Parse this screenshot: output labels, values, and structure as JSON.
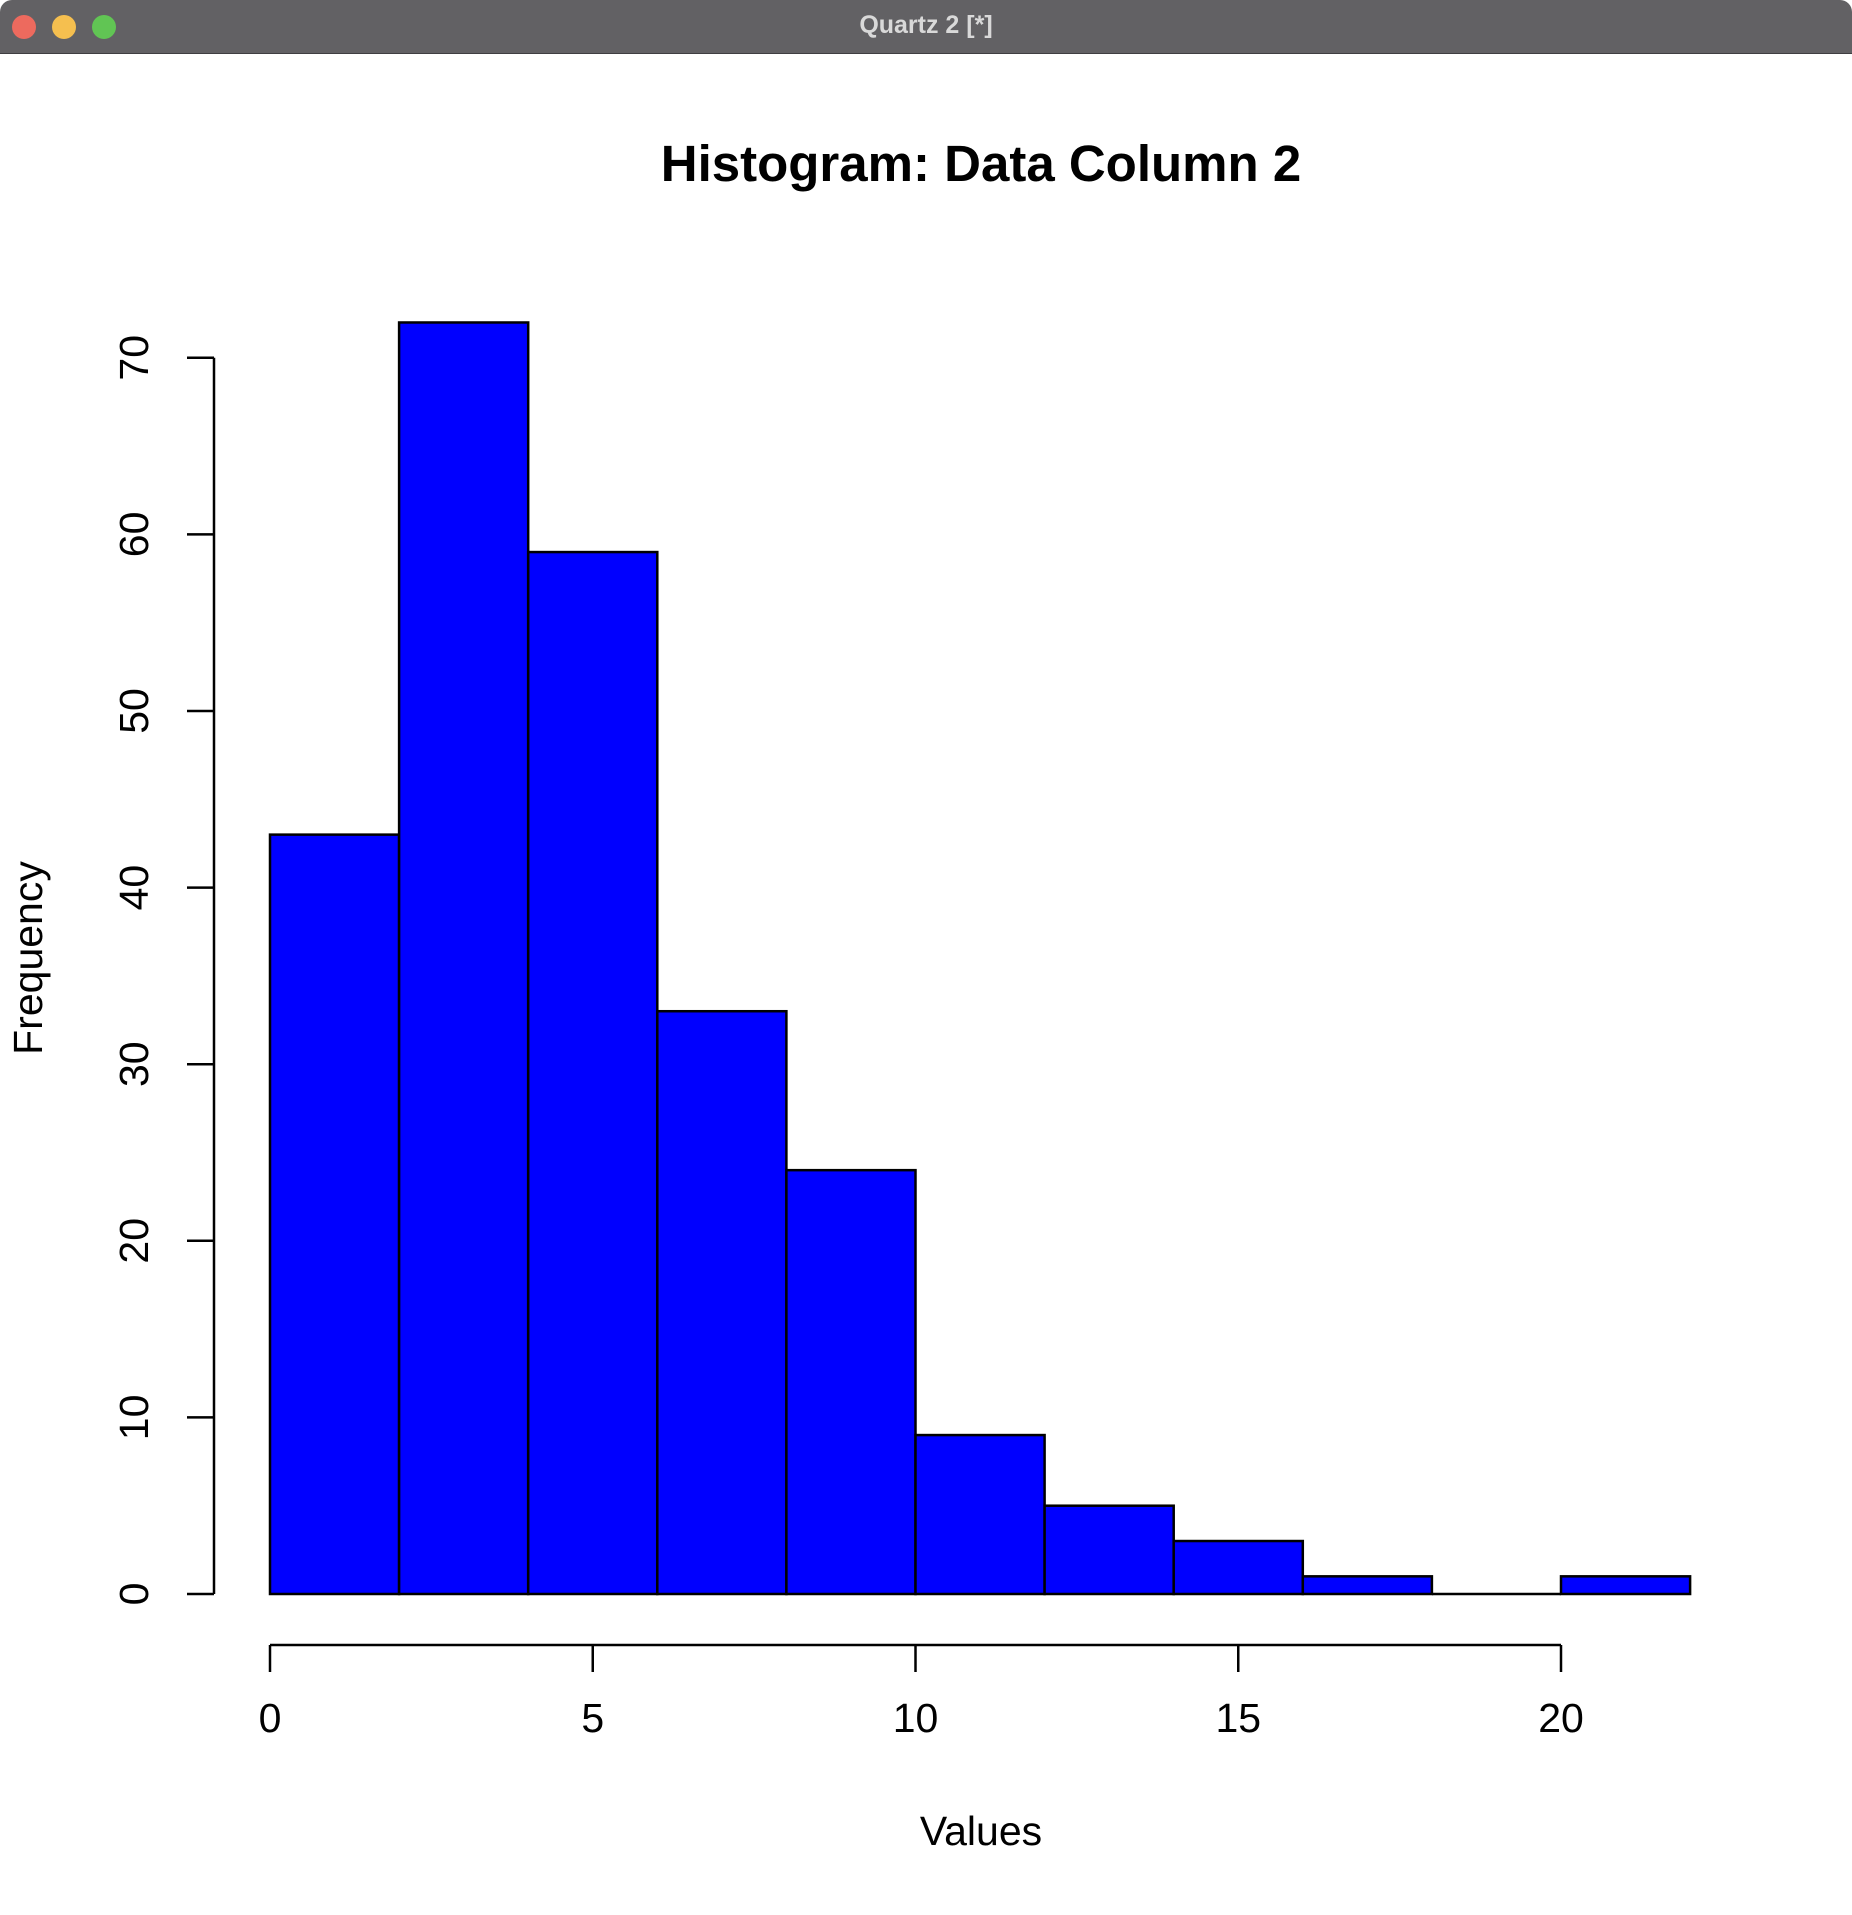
{
  "window": {
    "title": "Quartz 2 [*]",
    "buttons": [
      "close",
      "minimize",
      "zoom"
    ]
  },
  "chart_data": {
    "type": "bar",
    "title": "Histogram: Data Column 2",
    "xlabel": "Values",
    "ylabel": "Frequency",
    "bins": [
      {
        "start": 0,
        "end": 2,
        "count": 43
      },
      {
        "start": 2,
        "end": 4,
        "count": 72
      },
      {
        "start": 4,
        "end": 6,
        "count": 59
      },
      {
        "start": 6,
        "end": 8,
        "count": 33
      },
      {
        "start": 8,
        "end": 10,
        "count": 24
      },
      {
        "start": 10,
        "end": 12,
        "count": 9
      },
      {
        "start": 12,
        "end": 14,
        "count": 5
      },
      {
        "start": 14,
        "end": 16,
        "count": 3
      },
      {
        "start": 16,
        "end": 18,
        "count": 1
      },
      {
        "start": 18,
        "end": 20,
        "count": 0
      },
      {
        "start": 20,
        "end": 22,
        "count": 1
      }
    ],
    "x_ticks": [
      0,
      5,
      10,
      15,
      20
    ],
    "y_ticks": [
      0,
      10,
      20,
      30,
      40,
      50,
      60,
      70
    ],
    "xlim": [
      0,
      22
    ],
    "ylim": [
      0,
      72
    ],
    "bar_color": "#0000ff",
    "bar_edge_color": "#000000",
    "grid": false
  }
}
